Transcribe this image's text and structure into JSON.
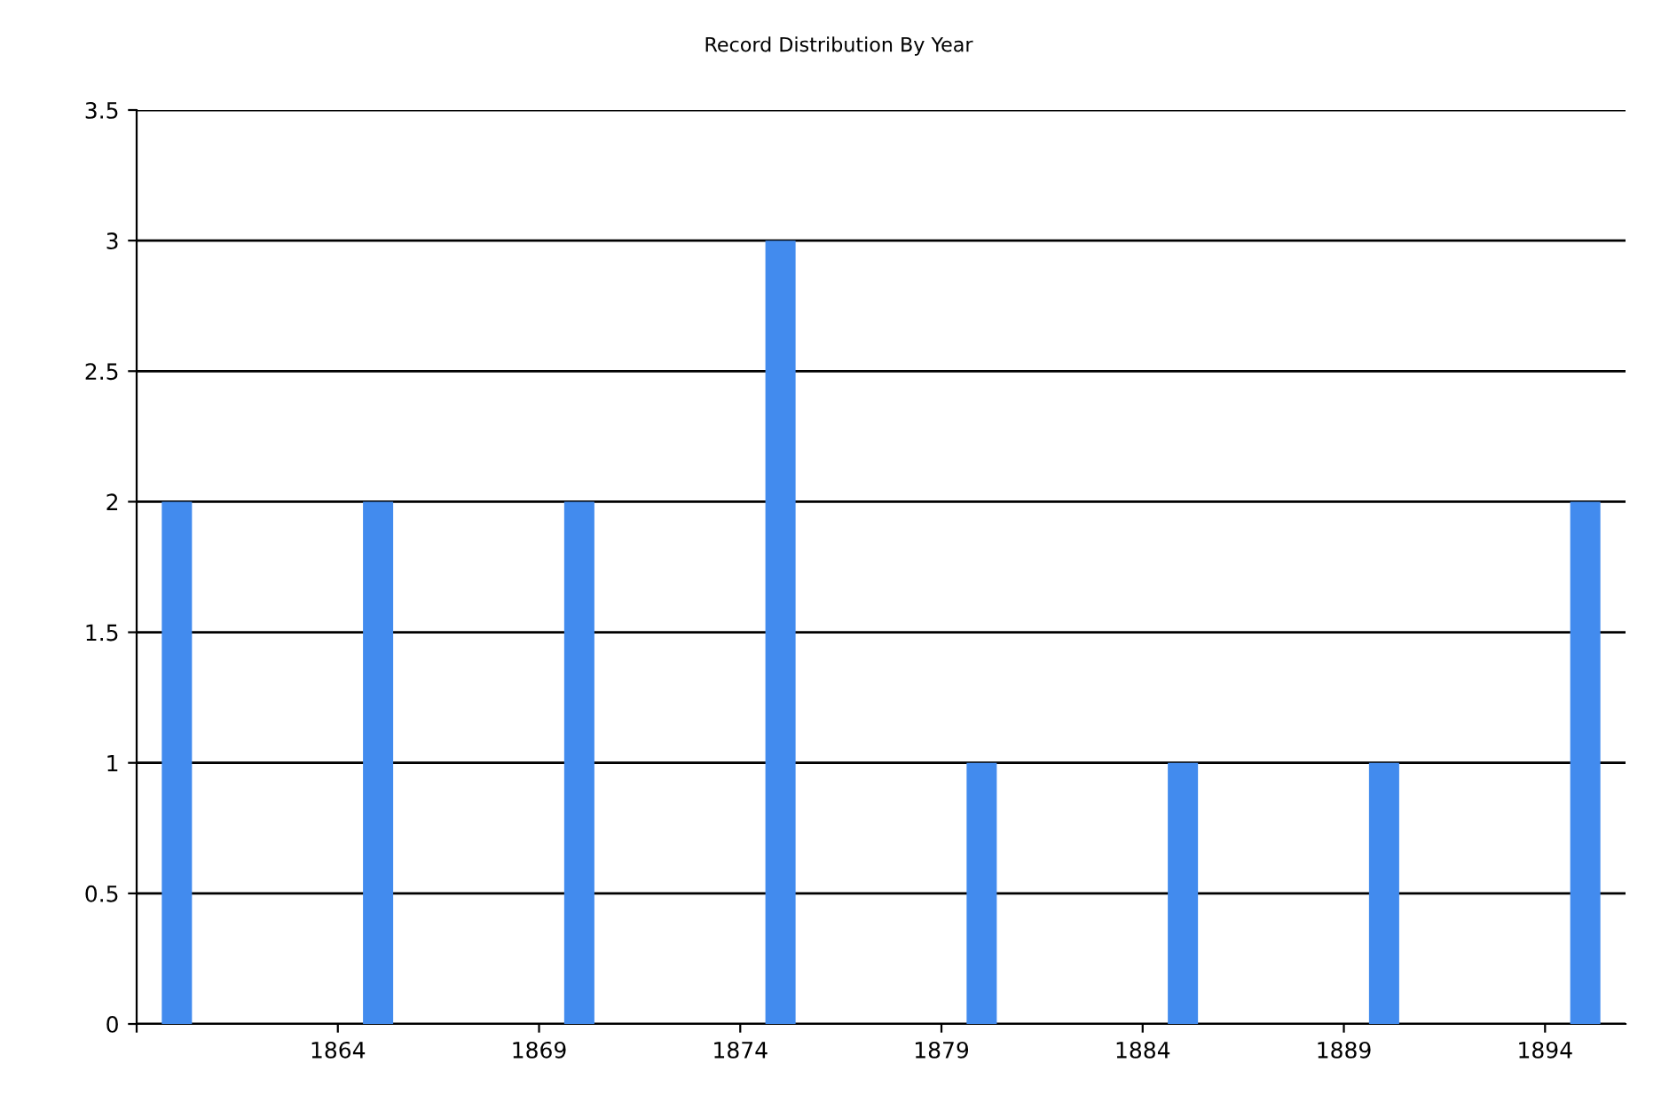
{
  "chart_data": {
    "type": "bar",
    "title": "Record Distribution By Year",
    "x": [
      1860,
      1865,
      1870,
      1875,
      1880,
      1885,
      1890,
      1895
    ],
    "values": [
      2,
      2,
      2,
      3,
      1,
      1,
      1,
      2
    ],
    "color": "#428bee",
    "xlim": [
      1859,
      1896
    ],
    "xticks": [
      {
        "value": 1859,
        "label": null
      },
      1864,
      1869,
      1874,
      1879,
      1884,
      1889,
      1894
    ],
    "ylim": [
      0,
      3.5
    ],
    "yticks": [
      0,
      0.5,
      1,
      1.5,
      2,
      2.5,
      3,
      3.5
    ],
    "grid": "y",
    "legend": false
  }
}
